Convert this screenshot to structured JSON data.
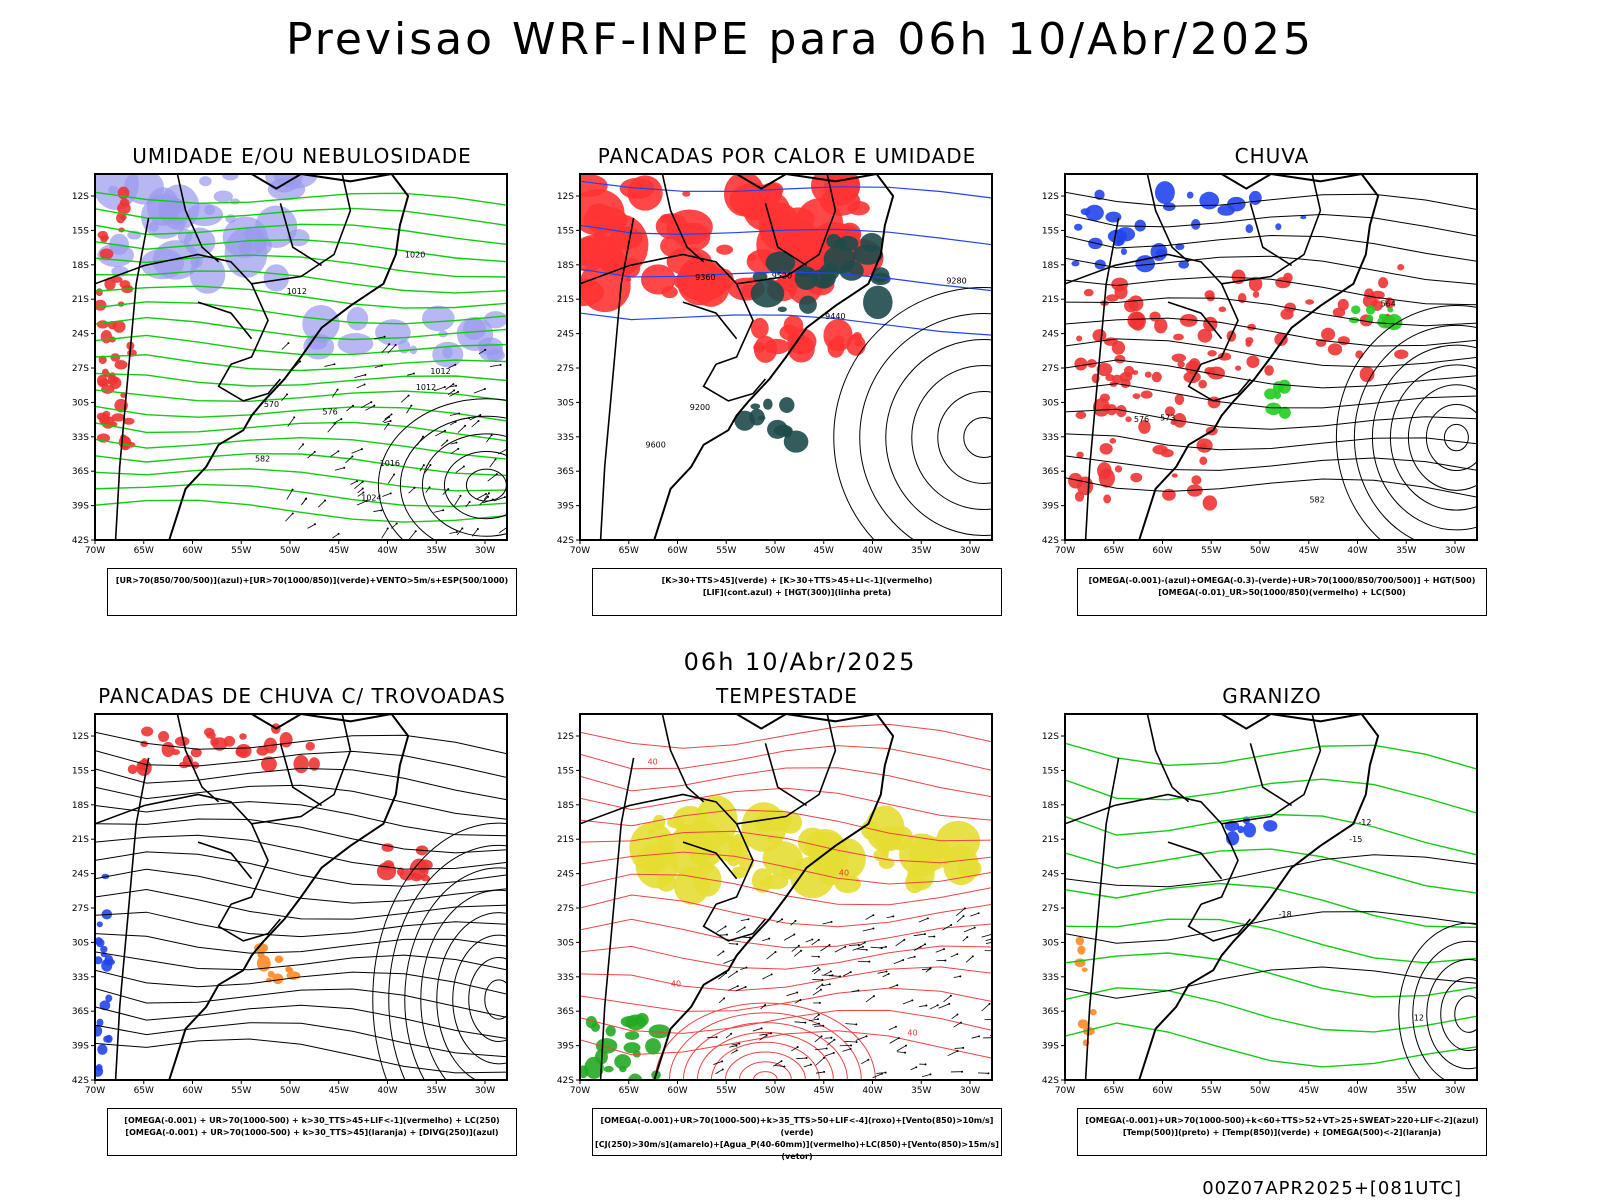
{
  "title": "Previsao WRF-INPE  para 06h 10/Abr/2025",
  "middle_title": "06h 10/Abr/2025",
  "footer": "00Z07APR2025+[081UTC]",
  "axes": {
    "lat_labels": [
      "12S",
      "15S",
      "18S",
      "21S",
      "24S",
      "27S",
      "30S",
      "33S",
      "36S",
      "39S",
      "42S"
    ],
    "lon_labels": [
      "70W",
      "65W",
      "60W",
      "55W",
      "50W",
      "45W",
      "40W",
      "35W",
      "30W"
    ]
  },
  "panels": [
    {
      "title": "UMIDADE E/OU NEBULOSIDADE",
      "legend": [
        "[UR>70(850/700/500)](azul)+[UR>70(1000/850)](verde)+VENTO>5m/s+ESP(500/1000)"
      ],
      "contour_labels": [
        "1012",
        "1012",
        "1012",
        "1016",
        "1020",
        "1024",
        "570",
        "576",
        "582"
      ]
    },
    {
      "title": "PANCADAS POR CALOR E UMIDADE",
      "legend": [
        "[K>30+TTS>45](verde) + [K>30+TTS>45+LI<-1](vermelho)",
        "[LIF](cont.azul) + [HGT(300)](linha preta)"
      ],
      "contour_labels": [
        "9600",
        "9520",
        "9440",
        "9360",
        "9280",
        "9200"
      ]
    },
    {
      "title": "CHUVA",
      "legend": [
        "[OMEGA(-0.001)-(azul)+OMEGA(-0.3)-(verde)+UR>70(1000/850/700/500)] + HGT(500)",
        "[OMEGA(-0.01)_UR>50(1000/850)(vermelho) + LC(500)"
      ],
      "contour_labels": [
        "582",
        "576",
        "573",
        "564"
      ]
    },
    {
      "title": "PANCADAS DE CHUVA C/ TROVOADAS",
      "legend": [
        "[OMEGA(-0.001) + UR>70(1000-500) + k>30_TTS>45+LIF<-1](vermelho) + LC(250)",
        "[OMEGA(-0.001) + UR>70(1000-500) + k>30_TTS>45](laranja) + [DIVG(250)](azul)"
      ],
      "contour_labels": []
    },
    {
      "title": "TEMPESTADE",
      "legend": [
        "[OMEGA(-0.001)+UR>70(1000-500)+k>35_TTS>50+LIF<-4](roxo)+[Vento(850)>10m/s](verde)",
        "[CJ(250)>30m/s](amarelo)+[Agua_P(40-60mm)](vermelho)+LC(850)+[Vento(850)>15m/s](vetor)"
      ],
      "contour_labels": [
        "40",
        "40",
        "40",
        "40"
      ]
    },
    {
      "title": "GRANIZO",
      "legend": [
        "[OMEGA(-0.001)+UR>70(1000-500)+k<60+TTS>52+VT>25+SWEAT>220+LIF<-2](azul)",
        "[Temp(500)](preto) + [Temp(850)](verde) + [OMEGA(500)<-2](laranja)"
      ],
      "contour_labels": [
        "-12",
        "-15",
        "-18",
        "12"
      ]
    }
  ]
}
